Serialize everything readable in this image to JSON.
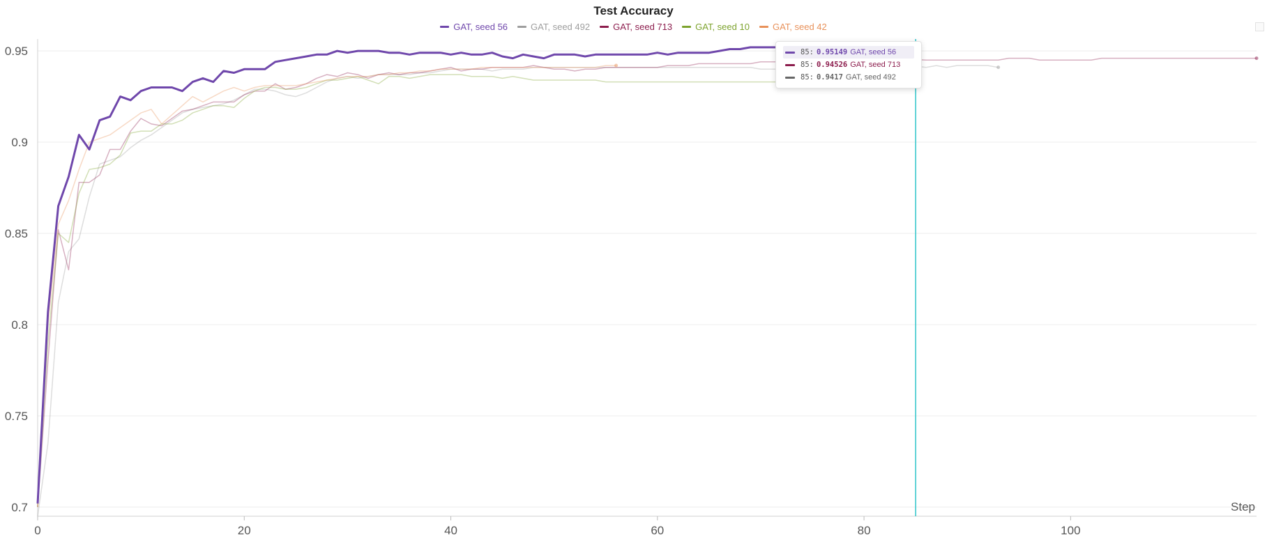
{
  "chart_data": {
    "type": "line",
    "title": "Test Accuracy",
    "xlabel": "Step",
    "ylabel": "",
    "xlim": [
      0,
      118
    ],
    "ylim": [
      0.695,
      0.955
    ],
    "xticks": [
      0,
      20,
      40,
      60,
      80,
      100
    ],
    "yticks": [
      0.7,
      0.75,
      0.8,
      0.85,
      0.9,
      0.95
    ],
    "grid": true,
    "legend_position": "top-center",
    "cursor_step": 85,
    "series": [
      {
        "name": "GAT, seed 56",
        "color": "#6f47ab",
        "highlight": true,
        "x": [
          0,
          1,
          2,
          3,
          4,
          5,
          6,
          7,
          8,
          9,
          10,
          11,
          12,
          13,
          14,
          15,
          16,
          17,
          18,
          19,
          20,
          21,
          22,
          23,
          24,
          25,
          26,
          27,
          28,
          29,
          30,
          31,
          32,
          33,
          34,
          35,
          36,
          37,
          38,
          39,
          40,
          41,
          42,
          43,
          44,
          45,
          46,
          47,
          48,
          49,
          50,
          51,
          52,
          53,
          54,
          55,
          56,
          57,
          58,
          59,
          60,
          61,
          62,
          63,
          64,
          65,
          66,
          67,
          68,
          69,
          70,
          71,
          72,
          73,
          74,
          75,
          76,
          77,
          78,
          79,
          80,
          81,
          82,
          83,
          84,
          85
        ],
        "y": [
          0.702,
          0.807,
          0.865,
          0.881,
          0.904,
          0.896,
          0.912,
          0.914,
          0.925,
          0.923,
          0.928,
          0.93,
          0.93,
          0.93,
          0.928,
          0.933,
          0.935,
          0.933,
          0.939,
          0.938,
          0.94,
          0.94,
          0.94,
          0.944,
          0.945,
          0.946,
          0.947,
          0.948,
          0.948,
          0.95,
          0.949,
          0.95,
          0.95,
          0.95,
          0.949,
          0.949,
          0.948,
          0.949,
          0.949,
          0.949,
          0.948,
          0.949,
          0.948,
          0.948,
          0.949,
          0.947,
          0.946,
          0.948,
          0.947,
          0.946,
          0.948,
          0.948,
          0.948,
          0.947,
          0.948,
          0.948,
          0.948,
          0.948,
          0.948,
          0.948,
          0.949,
          0.948,
          0.949,
          0.949,
          0.949,
          0.949,
          0.95,
          0.951,
          0.951,
          0.952,
          0.952,
          0.952,
          0.952,
          0.952,
          0.952,
          0.952,
          0.952,
          0.952,
          0.952,
          0.952,
          0.952,
          0.952,
          0.952,
          0.952,
          0.951,
          0.95149
        ]
      },
      {
        "name": "GAT, seed 492",
        "color": "#9e9e9e",
        "highlight": false,
        "x": [
          0,
          1,
          2,
          3,
          4,
          5,
          6,
          7,
          8,
          9,
          10,
          11,
          12,
          13,
          14,
          15,
          16,
          17,
          18,
          19,
          20,
          21,
          22,
          23,
          24,
          25,
          26,
          27,
          28,
          29,
          30,
          31,
          32,
          33,
          34,
          35,
          36,
          37,
          38,
          39,
          40,
          41,
          42,
          43,
          44,
          45,
          46,
          47,
          48,
          49,
          50,
          51,
          52,
          53,
          54,
          55,
          56,
          57,
          58,
          59,
          60,
          61,
          62,
          63,
          64,
          65,
          66,
          67,
          68,
          69,
          70,
          71,
          72,
          73,
          74,
          75,
          76,
          77,
          78,
          79,
          80,
          81,
          82,
          83,
          84,
          85,
          86,
          87,
          88,
          89,
          90,
          91,
          92,
          93
        ],
        "y": [
          0.695,
          0.735,
          0.812,
          0.84,
          0.847,
          0.87,
          0.888,
          0.89,
          0.892,
          0.897,
          0.901,
          0.904,
          0.908,
          0.912,
          0.916,
          0.918,
          0.919,
          0.92,
          0.921,
          0.923,
          0.926,
          0.929,
          0.929,
          0.928,
          0.926,
          0.925,
          0.927,
          0.93,
          0.933,
          0.935,
          0.936,
          0.935,
          0.936,
          0.937,
          0.937,
          0.937,
          0.937,
          0.938,
          0.938,
          0.939,
          0.94,
          0.94,
          0.94,
          0.94,
          0.939,
          0.94,
          0.94,
          0.94,
          0.941,
          0.941,
          0.941,
          0.941,
          0.941,
          0.941,
          0.941,
          0.941,
          0.941,
          0.941,
          0.941,
          0.941,
          0.941,
          0.941,
          0.941,
          0.941,
          0.941,
          0.941,
          0.941,
          0.941,
          0.941,
          0.941,
          0.94,
          0.94,
          0.94,
          0.941,
          0.941,
          0.941,
          0.941,
          0.941,
          0.941,
          0.941,
          0.941,
          0.941,
          0.941,
          0.941,
          0.941,
          0.9417,
          0.941,
          0.942,
          0.941,
          0.942,
          0.942,
          0.942,
          0.942,
          0.941
        ]
      },
      {
        "name": "GAT, seed 713",
        "color": "#8c1d4d",
        "highlight": false,
        "x": [
          0,
          1,
          2,
          3,
          4,
          5,
          6,
          7,
          8,
          9,
          10,
          11,
          12,
          13,
          14,
          15,
          16,
          17,
          18,
          19,
          20,
          21,
          22,
          23,
          24,
          25,
          26,
          27,
          28,
          29,
          30,
          31,
          32,
          33,
          34,
          35,
          36,
          37,
          38,
          39,
          40,
          41,
          42,
          43,
          44,
          45,
          46,
          47,
          48,
          49,
          50,
          51,
          52,
          53,
          54,
          55,
          56,
          57,
          58,
          59,
          60,
          61,
          62,
          63,
          64,
          65,
          66,
          67,
          68,
          69,
          70,
          71,
          72,
          73,
          74,
          75,
          76,
          77,
          78,
          79,
          80,
          81,
          82,
          83,
          84,
          85,
          86,
          87,
          88,
          89,
          90,
          91,
          92,
          93,
          94,
          95,
          96,
          97,
          98,
          99,
          100,
          101,
          102,
          103,
          104,
          105,
          106,
          107,
          108,
          109,
          110,
          111,
          112,
          113,
          114,
          115,
          116,
          117,
          118
        ],
        "y": [
          0.7,
          0.78,
          0.852,
          0.83,
          0.878,
          0.878,
          0.882,
          0.896,
          0.896,
          0.906,
          0.913,
          0.91,
          0.909,
          0.913,
          0.917,
          0.918,
          0.92,
          0.922,
          0.922,
          0.922,
          0.926,
          0.928,
          0.928,
          0.932,
          0.929,
          0.93,
          0.932,
          0.935,
          0.937,
          0.936,
          0.938,
          0.937,
          0.935,
          0.937,
          0.938,
          0.937,
          0.938,
          0.938,
          0.939,
          0.94,
          0.941,
          0.939,
          0.94,
          0.94,
          0.941,
          0.941,
          0.941,
          0.941,
          0.942,
          0.941,
          0.94,
          0.94,
          0.939,
          0.94,
          0.94,
          0.941,
          0.941,
          0.941,
          0.941,
          0.941,
          0.941,
          0.942,
          0.942,
          0.942,
          0.943,
          0.943,
          0.943,
          0.943,
          0.943,
          0.943,
          0.944,
          0.944,
          0.944,
          0.944,
          0.944,
          0.944,
          0.944,
          0.944,
          0.944,
          0.944,
          0.944,
          0.945,
          0.945,
          0.945,
          0.945,
          0.94526,
          0.945,
          0.945,
          0.945,
          0.945,
          0.945,
          0.945,
          0.945,
          0.945,
          0.946,
          0.946,
          0.946,
          0.945,
          0.945,
          0.945,
          0.945,
          0.945,
          0.945,
          0.946,
          0.946,
          0.946,
          0.946,
          0.946,
          0.946,
          0.946,
          0.946,
          0.946,
          0.946,
          0.946,
          0.946,
          0.946,
          0.946,
          0.946,
          0.946
        ]
      },
      {
        "name": "GAT, seed 10",
        "color": "#7da32e",
        "highlight": false,
        "x": [
          0,
          1,
          2,
          3,
          4,
          5,
          6,
          7,
          8,
          9,
          10,
          11,
          12,
          13,
          14,
          15,
          16,
          17,
          18,
          19,
          20,
          21,
          22,
          23,
          24,
          25,
          26,
          27,
          28,
          29,
          30,
          31,
          32,
          33,
          34,
          35,
          36,
          37,
          38,
          39,
          40,
          41,
          42,
          43,
          44,
          45,
          46,
          47,
          48,
          49,
          50,
          51,
          52,
          53,
          54,
          55,
          56,
          57,
          58,
          59,
          60,
          61,
          62,
          63,
          64,
          65,
          66,
          67,
          68,
          69,
          70,
          71,
          72,
          73,
          74,
          75,
          76,
          77,
          78,
          79,
          80
        ],
        "y": [
          0.7,
          0.79,
          0.85,
          0.845,
          0.872,
          0.885,
          0.886,
          0.888,
          0.893,
          0.905,
          0.906,
          0.906,
          0.91,
          0.91,
          0.912,
          0.916,
          0.918,
          0.92,
          0.92,
          0.919,
          0.924,
          0.928,
          0.93,
          0.93,
          0.929,
          0.929,
          0.93,
          0.932,
          0.934,
          0.934,
          0.935,
          0.936,
          0.934,
          0.932,
          0.936,
          0.936,
          0.935,
          0.936,
          0.937,
          0.937,
          0.937,
          0.937,
          0.936,
          0.936,
          0.936,
          0.935,
          0.936,
          0.935,
          0.934,
          0.934,
          0.934,
          0.934,
          0.934,
          0.934,
          0.934,
          0.933,
          0.933,
          0.933,
          0.933,
          0.933,
          0.933,
          0.933,
          0.933,
          0.933,
          0.933,
          0.933,
          0.933,
          0.933,
          0.933,
          0.933,
          0.933,
          0.933,
          0.933,
          0.933,
          0.933,
          0.933,
          0.933,
          0.933,
          0.933,
          0.933,
          0.933
        ]
      },
      {
        "name": "GAT, seed 42",
        "color": "#e8915a",
        "highlight": false,
        "x": [
          0,
          1,
          2,
          3,
          4,
          5,
          6,
          7,
          8,
          9,
          10,
          11,
          12,
          13,
          14,
          15,
          16,
          17,
          18,
          19,
          20,
          21,
          22,
          23,
          24,
          25,
          26,
          27,
          28,
          29,
          30,
          31,
          32,
          33,
          34,
          35,
          36,
          37,
          38,
          39,
          40,
          41,
          42,
          43,
          44,
          45,
          46,
          47,
          48,
          49,
          50,
          51,
          52,
          53,
          54,
          55,
          56
        ],
        "y": [
          0.7,
          0.8,
          0.855,
          0.868,
          0.885,
          0.9,
          0.902,
          0.904,
          0.908,
          0.912,
          0.916,
          0.918,
          0.91,
          0.915,
          0.92,
          0.925,
          0.922,
          0.925,
          0.928,
          0.93,
          0.928,
          0.93,
          0.931,
          0.931,
          0.931,
          0.931,
          0.932,
          0.933,
          0.934,
          0.935,
          0.936,
          0.936,
          0.936,
          0.937,
          0.937,
          0.938,
          0.938,
          0.939,
          0.939,
          0.94,
          0.94,
          0.94,
          0.94,
          0.941,
          0.941,
          0.941,
          0.941,
          0.941,
          0.941,
          0.941,
          0.941,
          0.941,
          0.941,
          0.941,
          0.941,
          0.942,
          0.942
        ]
      }
    ],
    "tooltip": [
      {
        "step": "85:",
        "value": "0.95149",
        "name": "GAT, seed 56",
        "color": "#6f47ab",
        "active": true
      },
      {
        "step": "85:",
        "value": "0.94526",
        "name": "GAT, seed 713",
        "color": "#8c1d4d",
        "active": false
      },
      {
        "step": "85:",
        "value": "0.9417",
        "name": "GAT, seed 492",
        "color": "#666666",
        "active": false
      }
    ]
  }
}
